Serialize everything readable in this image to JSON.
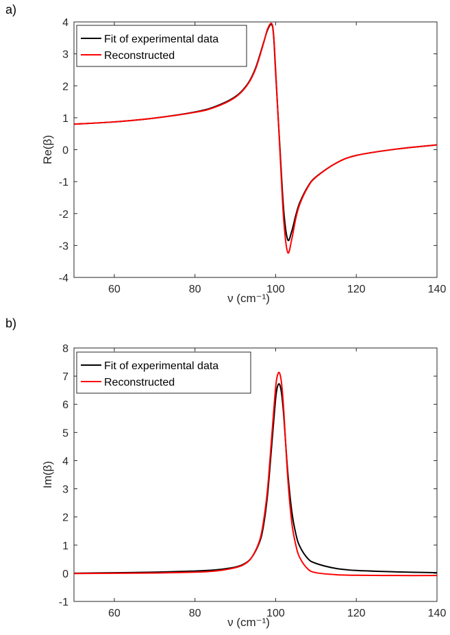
{
  "panels": [
    {
      "label": "a)"
    },
    {
      "label": "b)"
    }
  ],
  "chart_data": [
    {
      "type": "line",
      "title": "",
      "xlabel": "ν (cm⁻¹)",
      "ylabel": "Re(β)",
      "xlim": [
        50,
        140
      ],
      "ylim": [
        -4,
        4
      ],
      "xticks": [
        60,
        80,
        100,
        120,
        140
      ],
      "yticks": [
        -4,
        -3,
        -2,
        -1,
        0,
        1,
        2,
        3,
        4
      ],
      "grid": false,
      "legend": "top-left",
      "x": [
        50,
        60,
        70,
        80,
        85,
        90,
        93,
        95,
        97,
        98,
        99,
        99.5,
        100,
        101,
        102,
        103,
        104,
        105,
        106,
        108,
        110,
        115,
        120,
        130,
        140
      ],
      "series": [
        {
          "name": "Fit of experimental data",
          "color": "#000000",
          "values": [
            0.8,
            0.87,
            0.99,
            1.18,
            1.35,
            1.66,
            2.05,
            2.55,
            3.35,
            3.75,
            3.92,
            3.55,
            2.4,
            0.2,
            -1.9,
            -2.82,
            -2.55,
            -2.05,
            -1.65,
            -1.15,
            -0.85,
            -0.42,
            -0.18,
            0.02,
            0.15
          ]
        },
        {
          "name": "Reconstructed",
          "color": "#ff0000",
          "values": [
            0.8,
            0.87,
            0.99,
            1.17,
            1.33,
            1.64,
            2.03,
            2.52,
            3.33,
            3.78,
            3.95,
            3.6,
            2.5,
            0.1,
            -2.2,
            -3.22,
            -2.8,
            -2.15,
            -1.7,
            -1.17,
            -0.86,
            -0.42,
            -0.18,
            0.02,
            0.15
          ]
        }
      ]
    },
    {
      "type": "line",
      "title": "",
      "xlabel": "ν (cm⁻¹)",
      "ylabel": "Im(β)",
      "xlim": [
        50,
        140
      ],
      "ylim": [
        -1,
        8
      ],
      "xticks": [
        60,
        80,
        100,
        120,
        140
      ],
      "yticks": [
        -1,
        0,
        1,
        2,
        3,
        4,
        5,
        6,
        7,
        8
      ],
      "grid": false,
      "legend": "top-left",
      "x": [
        50,
        60,
        70,
        80,
        85,
        88,
        90,
        92,
        94,
        96,
        97,
        98,
        99,
        100,
        100.5,
        101,
        101.5,
        102,
        103,
        104,
        105,
        106,
        108,
        110,
        115,
        120,
        130,
        140
      ],
      "series": [
        {
          "name": "Fit of experimental data",
          "color": "#000000",
          "values": [
            0.0,
            0.02,
            0.04,
            0.08,
            0.12,
            0.17,
            0.22,
            0.32,
            0.55,
            1.1,
            1.7,
            2.8,
            4.5,
            6.2,
            6.65,
            6.7,
            6.35,
            5.6,
            3.6,
            2.2,
            1.4,
            0.95,
            0.52,
            0.35,
            0.17,
            0.1,
            0.05,
            0.02
          ]
        },
        {
          "name": "Reconstructed",
          "color": "#ff0000",
          "values": [
            -0.01,
            0.0,
            0.01,
            0.04,
            0.08,
            0.14,
            0.2,
            0.3,
            0.55,
            1.15,
            1.85,
            3.0,
            4.8,
            6.6,
            7.05,
            7.1,
            6.7,
            5.8,
            3.4,
            1.8,
            1.0,
            0.55,
            0.15,
            0.02,
            -0.05,
            -0.07,
            -0.08,
            -0.08
          ]
        }
      ]
    }
  ]
}
